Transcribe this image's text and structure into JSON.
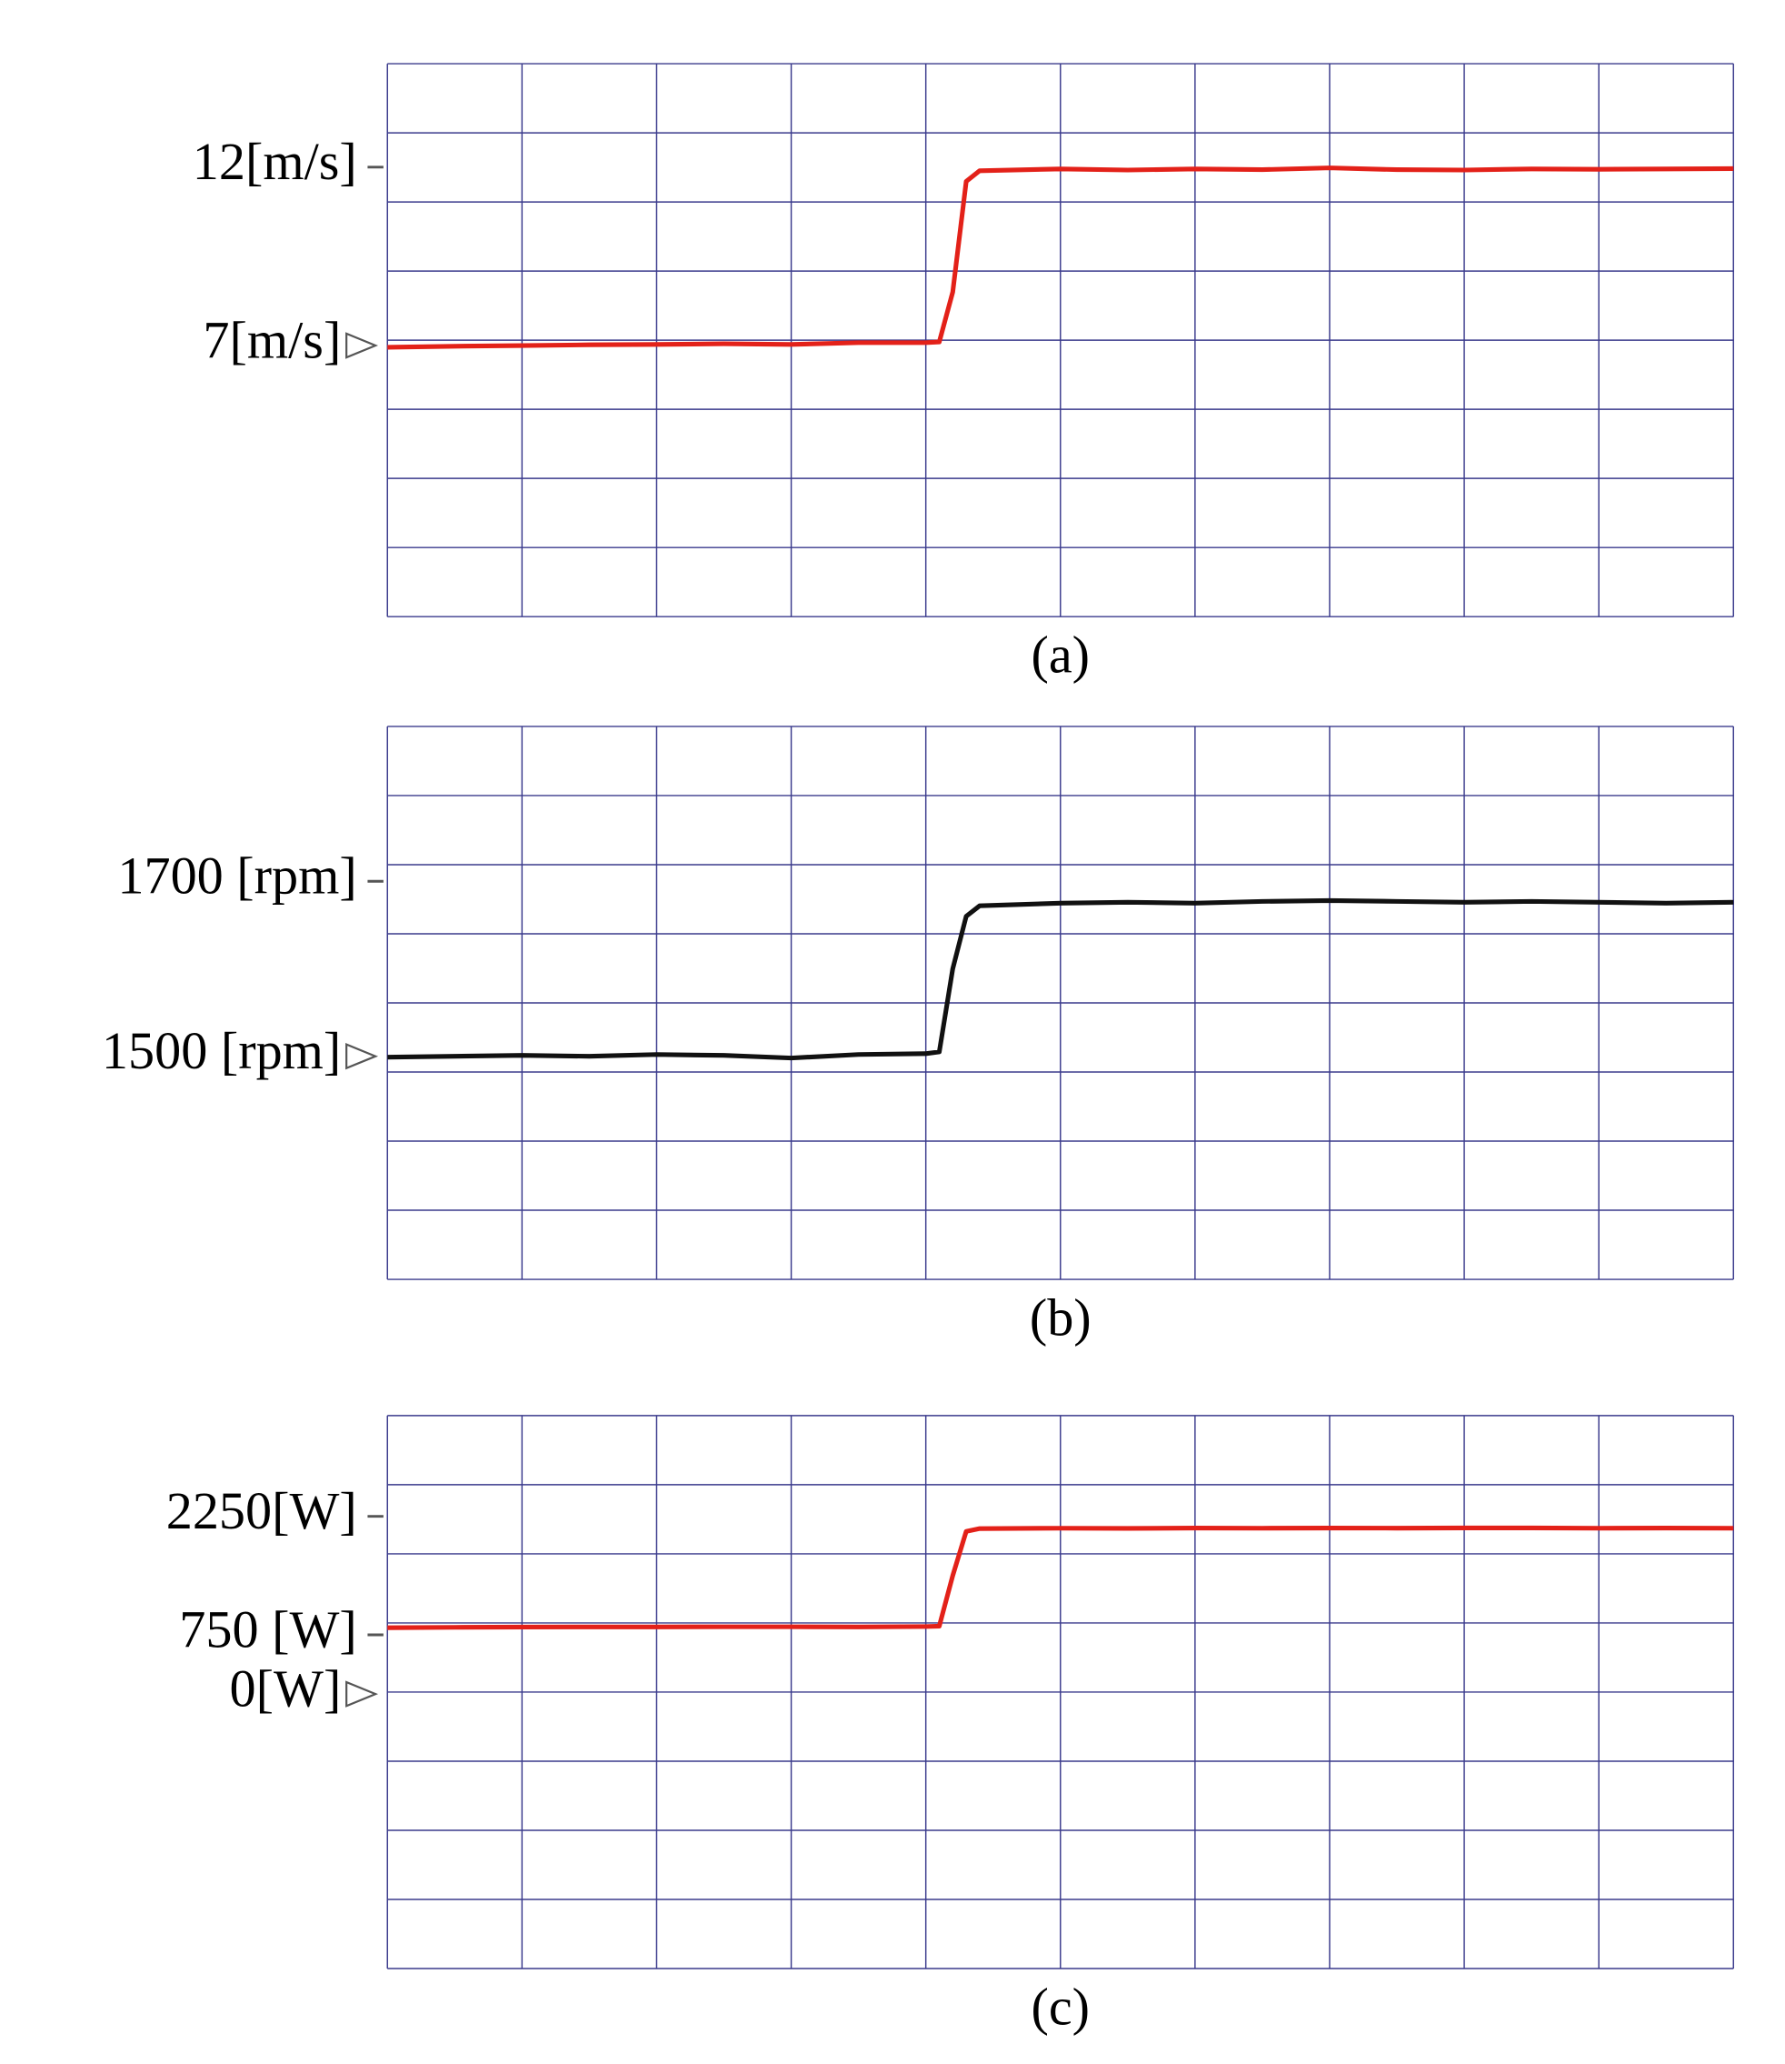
{
  "chart_data": [
    {
      "type": "line",
      "caption": "(a)",
      "color": "#e32119",
      "x": [
        0,
        0.5,
        1,
        1.5,
        2,
        2.5,
        3,
        3.5,
        4,
        4.1,
        4.2,
        4.3,
        4.4,
        5,
        5.5,
        6,
        6.5,
        7,
        7.5,
        8,
        8.5,
        9,
        9.5,
        10
      ],
      "values": [
        6.95,
        6.98,
        7.0,
        7.02,
        7.03,
        7.05,
        7.03,
        7.08,
        7.08,
        7.1,
        8.5,
        11.6,
        11.9,
        11.95,
        11.92,
        11.95,
        11.93,
        11.98,
        11.93,
        11.92,
        11.95,
        11.94,
        11.95,
        11.96
      ],
      "xlim": [
        0,
        10
      ],
      "ylim": [
        -0.6,
        14.9
      ],
      "yticks": [
        {
          "value": 12,
          "label": "12[m/s]",
          "marker": "dash"
        },
        {
          "value": 7,
          "label": "7[m/s]",
          "marker": "triangle"
        }
      ],
      "grid": {
        "x_divisions": 10,
        "y_divisions": 8
      }
    },
    {
      "type": "line",
      "caption": "(b)",
      "color": "#111111",
      "x": [
        0,
        0.5,
        1,
        1.5,
        2,
        2.5,
        3,
        3.5,
        4,
        4.1,
        4.2,
        4.3,
        4.4,
        5,
        5.5,
        6,
        6.5,
        7,
        7.5,
        8,
        8.5,
        9,
        9.5,
        10
      ],
      "values": [
        1499,
        1500,
        1501,
        1500,
        1502,
        1501,
        1498,
        1502,
        1503,
        1505,
        1600,
        1660,
        1672,
        1675,
        1676,
        1675,
        1677,
        1678,
        1677,
        1676,
        1677,
        1676,
        1675,
        1676
      ],
      "xlim": [
        0,
        10
      ],
      "ylim": [
        1245,
        1877
      ],
      "yticks": [
        {
          "value": 1700,
          "label": "1700 [rpm]",
          "marker": "dash"
        },
        {
          "value": 1500,
          "label": "1500 [rpm]",
          "marker": "triangle"
        }
      ],
      "grid": {
        "x_divisions": 10,
        "y_divisions": 8
      }
    },
    {
      "type": "line",
      "caption": "(c)",
      "color": "#e32119",
      "x": [
        0,
        0.5,
        1,
        1.5,
        2,
        2.5,
        3,
        3.5,
        4,
        4.1,
        4.2,
        4.3,
        4.4,
        5,
        5.5,
        6,
        6.5,
        7,
        7.5,
        8,
        8.5,
        9,
        9.5,
        10
      ],
      "values": [
        840,
        845,
        848,
        850,
        850,
        852,
        852,
        850,
        855,
        860,
        1500,
        2060,
        2095,
        2100,
        2098,
        2102,
        2100,
        2102,
        2101,
        2103,
        2104,
        2100,
        2102,
        2100
      ],
      "xlim": [
        0,
        10
      ],
      "ylim": [
        -3476,
        3526
      ],
      "yticks": [
        {
          "value": 2250,
          "label": "2250[W]",
          "marker": "dash"
        },
        {
          "value": 750,
          "label": "750 [W]",
          "marker": "dash"
        },
        {
          "value": 0,
          "label": "0[W]",
          "marker": "triangle"
        }
      ],
      "grid": {
        "x_divisions": 10,
        "y_divisions": 8
      }
    }
  ]
}
